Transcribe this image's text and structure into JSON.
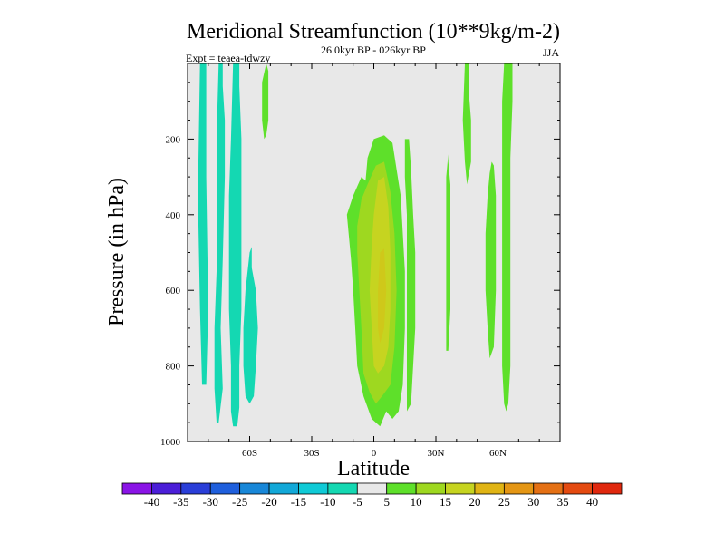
{
  "chart_data": {
    "type": "heatmap",
    "title": "Meridional Streamfunction (10**9kg/m-2)",
    "subtitle": "26.0kyr BP - 026kyr BP",
    "experiment": "Expt = teaea-tdwzy",
    "season": "JJA",
    "xlabel": "Latitude",
    "ylabel": "Pressure (in hPa)",
    "xlim": [
      -90,
      90
    ],
    "ylim": [
      1000,
      0
    ],
    "x_ticks": [
      {
        "value": -60,
        "label": "60S"
      },
      {
        "value": -30,
        "label": "30S"
      },
      {
        "value": 0,
        "label": "0"
      },
      {
        "value": 30,
        "label": "30N"
      },
      {
        "value": 60,
        "label": "60N"
      }
    ],
    "y_ticks": [
      {
        "value": 200,
        "label": "200"
      },
      {
        "value": 400,
        "label": "400"
      },
      {
        "value": 600,
        "label": "600"
      },
      {
        "value": 800,
        "label": "800"
      },
      {
        "value": 1000,
        "label": "1000"
      }
    ],
    "colorbar": {
      "labels": [
        "-40",
        "-35",
        "-30",
        "-25",
        "-20",
        "-15",
        "-10",
        "-5",
        "5",
        "10",
        "15",
        "20",
        "25",
        "30",
        "35",
        "40"
      ],
      "colors": [
        "#8a14e6",
        "#4b1ed8",
        "#2a3ed8",
        "#1f5fdc",
        "#1887d8",
        "#12a8d8",
        "#0fcad6",
        "#14d8b2",
        "#e8e8e8",
        "#5ee02a",
        "#9ed820",
        "#c6d420",
        "#e0b414",
        "#e49614",
        "#e47014",
        "#e44a10",
        "#e0280e"
      ]
    },
    "contours": [
      {
        "level": -10,
        "color": "#14d8b2",
        "points": [
          [
            -84,
            0
          ],
          [
            -81,
            0
          ],
          [
            -81,
            300
          ],
          [
            -80,
            650
          ],
          [
            -81,
            850
          ],
          [
            -83,
            850
          ],
          [
            -84,
            650
          ],
          [
            -85,
            350
          ]
        ]
      },
      {
        "level": -10,
        "color": "#14d8b2",
        "points": [
          [
            -75,
            0
          ],
          [
            -73,
            0
          ],
          [
            -73,
            60
          ],
          [
            -72,
            150
          ],
          [
            -72,
            300
          ],
          [
            -73,
            520
          ],
          [
            -74,
            700
          ],
          [
            -73,
            860
          ],
          [
            -75,
            950
          ],
          [
            -76,
            950
          ],
          [
            -77,
            860
          ],
          [
            -77,
            700
          ],
          [
            -76,
            550
          ],
          [
            -76,
            350
          ],
          [
            -76,
            200
          ]
        ]
      },
      {
        "level": -10,
        "color": "#14d8b2",
        "points": [
          [
            -68,
            0
          ],
          [
            -65,
            0
          ],
          [
            -65,
            60
          ],
          [
            -64,
            200
          ],
          [
            -64,
            350
          ],
          [
            -64,
            500
          ],
          [
            -64,
            650
          ],
          [
            -65,
            800
          ],
          [
            -65,
            910
          ],
          [
            -66,
            960
          ],
          [
            -68,
            960
          ],
          [
            -69,
            920
          ],
          [
            -69,
            800
          ],
          [
            -70,
            650
          ],
          [
            -70,
            500
          ],
          [
            -70,
            350
          ],
          [
            -69,
            200
          ]
        ]
      },
      {
        "level": -10,
        "color": "#14d8b2",
        "points": [
          [
            -59,
            485
          ],
          [
            -59,
            540
          ],
          [
            -57,
            600
          ],
          [
            -56,
            700
          ],
          [
            -57,
            800
          ],
          [
            -58,
            880
          ],
          [
            -60,
            900
          ],
          [
            -62,
            880
          ],
          [
            -63,
            800
          ],
          [
            -63,
            700
          ],
          [
            -62,
            600
          ],
          [
            -61,
            550
          ],
          [
            -60,
            500
          ]
        ]
      },
      {
        "level": 5,
        "color": "#5ee02a",
        "points": [
          [
            -52,
            0
          ],
          [
            -51,
            20
          ],
          [
            -51,
            150
          ],
          [
            -52,
            190
          ],
          [
            -53,
            200
          ],
          [
            -54,
            150
          ],
          [
            -54,
            50
          ]
        ]
      },
      {
        "level": 5,
        "color": "#5ee02a",
        "points": [
          [
            -12,
            460
          ],
          [
            -13,
            400
          ],
          [
            -10,
            350
          ],
          [
            -6,
            300
          ],
          [
            -4,
            310
          ],
          [
            -3,
            250
          ],
          [
            0,
            200
          ],
          [
            5,
            190
          ],
          [
            9,
            210
          ],
          [
            11,
            280
          ],
          [
            13,
            350
          ],
          [
            14,
            450
          ],
          [
            15,
            550
          ],
          [
            15,
            700
          ],
          [
            14,
            850
          ],
          [
            12,
            920
          ],
          [
            9,
            940
          ],
          [
            6,
            920
          ],
          [
            3,
            960
          ],
          [
            -1,
            940
          ],
          [
            -5,
            880
          ],
          [
            -8,
            800
          ],
          [
            -9,
            700
          ],
          [
            -10,
            600
          ],
          [
            -11,
            520
          ]
        ]
      },
      {
        "level": 10,
        "color": "#9ed820",
        "points": [
          [
            -8,
            430
          ],
          [
            -6,
            360
          ],
          [
            -3,
            320
          ],
          [
            1,
            270
          ],
          [
            5,
            260
          ],
          [
            8,
            340
          ],
          [
            10,
            450
          ],
          [
            11,
            600
          ],
          [
            10,
            750
          ],
          [
            8,
            850
          ],
          [
            4,
            880
          ],
          [
            1,
            900
          ],
          [
            -2,
            870
          ],
          [
            -5,
            820
          ],
          [
            -6,
            700
          ],
          [
            -7,
            600
          ],
          [
            -8,
            500
          ]
        ]
      },
      {
        "level": 15,
        "color": "#c6d420",
        "points": [
          [
            2,
            310
          ],
          [
            5,
            300
          ],
          [
            7,
            380
          ],
          [
            8,
            500
          ],
          [
            8,
            650
          ],
          [
            7,
            750
          ],
          [
            5,
            800
          ],
          [
            2,
            820
          ],
          [
            0,
            800
          ],
          [
            -1,
            700
          ],
          [
            -2,
            600
          ],
          [
            -1,
            480
          ],
          [
            0,
            400
          ]
        ]
      },
      {
        "level": 20,
        "color": "#cfc81a",
        "points": [
          [
            3,
            500
          ],
          [
            5,
            490
          ],
          [
            6,
            600
          ],
          [
            5,
            700
          ],
          [
            3,
            740
          ],
          [
            2,
            700
          ],
          [
            2,
            600
          ]
        ]
      },
      {
        "level": 5,
        "color": "#5ee02a",
        "points": [
          [
            15,
            200
          ],
          [
            17,
            200
          ],
          [
            18,
            280
          ],
          [
            19,
            400
          ],
          [
            20,
            500
          ],
          [
            20,
            600
          ],
          [
            20,
            700
          ],
          [
            19,
            800
          ],
          [
            18,
            900
          ],
          [
            16,
            920
          ],
          [
            16,
            850
          ],
          [
            16,
            700
          ],
          [
            16,
            550
          ],
          [
            16,
            400
          ],
          [
            15,
            300
          ]
        ]
      },
      {
        "level": 5,
        "color": "#5ee02a",
        "points": [
          [
            37,
            380
          ],
          [
            37,
            320
          ],
          [
            36,
            260
          ],
          [
            36,
            240
          ],
          [
            35,
            300
          ],
          [
            35,
            500
          ],
          [
            35,
            650
          ],
          [
            35,
            760
          ],
          [
            36,
            760
          ],
          [
            37,
            650
          ],
          [
            37,
            500
          ]
        ]
      },
      {
        "level": 5,
        "color": "#5ee02a",
        "points": [
          [
            44,
            0
          ],
          [
            46,
            0
          ],
          [
            46,
            80
          ],
          [
            47,
            150
          ],
          [
            47,
            260
          ],
          [
            45,
            320
          ],
          [
            44,
            260
          ],
          [
            43,
            150
          ]
        ]
      },
      {
        "level": 5,
        "color": "#5ee02a",
        "points": [
          [
            57,
            260
          ],
          [
            58,
            270
          ],
          [
            59,
            350
          ],
          [
            59,
            450
          ],
          [
            59,
            600
          ],
          [
            58,
            750
          ],
          [
            56,
            780
          ],
          [
            55,
            700
          ],
          [
            54,
            600
          ],
          [
            54,
            450
          ],
          [
            55,
            350
          ],
          [
            56,
            290
          ]
        ]
      },
      {
        "level": 5,
        "color": "#5ee02a",
        "points": [
          [
            63,
            0
          ],
          [
            67,
            0
          ],
          [
            67,
            100
          ],
          [
            66,
            250
          ],
          [
            66,
            450
          ],
          [
            66,
            650
          ],
          [
            66,
            800
          ],
          [
            65,
            900
          ],
          [
            64,
            920
          ],
          [
            63,
            900
          ],
          [
            62,
            800
          ],
          [
            62,
            650
          ],
          [
            62,
            450
          ],
          [
            62,
            250
          ],
          [
            62,
            100
          ]
        ]
      }
    ]
  }
}
